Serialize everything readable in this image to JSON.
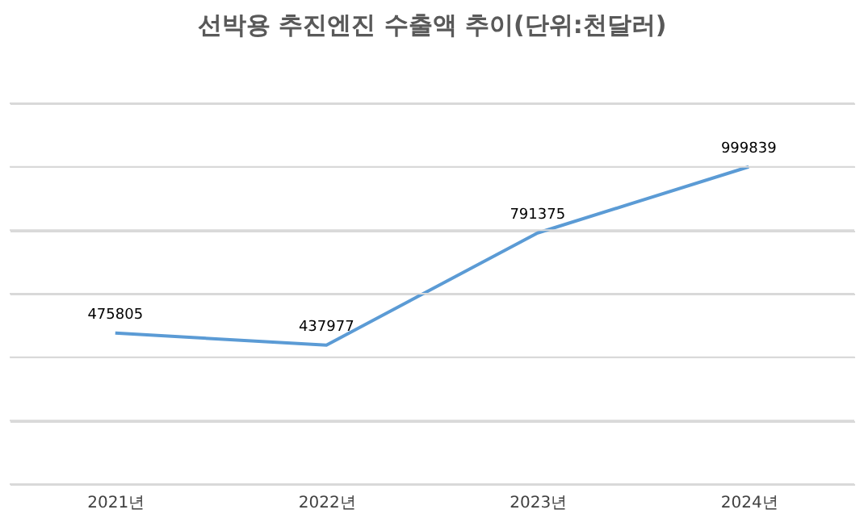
{
  "chart_data": {
    "type": "line",
    "title": "선박용 추진엔진 수출액 추이(단위:천달러)",
    "categories": [
      "2021년",
      "2022년",
      "2023년",
      "2024년"
    ],
    "series": [
      {
        "color": "#5b9bd5",
        "values": [
          475805,
          437977,
          791375,
          999839
        ]
      }
    ],
    "ylim": [
      0,
      1200000
    ],
    "yticks": [
      {
        "value": 0,
        "label": null
      },
      {
        "value": 200000,
        "label": null
      },
      {
        "value": 400000,
        "label": null
      },
      {
        "value": 600000,
        "label": null
      },
      {
        "value": 800000,
        "label": null
      },
      {
        "value": 1000000,
        "label": null
      },
      {
        "value": 1200000,
        "label": null
      }
    ],
    "grid": "y",
    "tick_labels": "x",
    "data_labels": true,
    "marker": "none",
    "line_style": "solid"
  }
}
